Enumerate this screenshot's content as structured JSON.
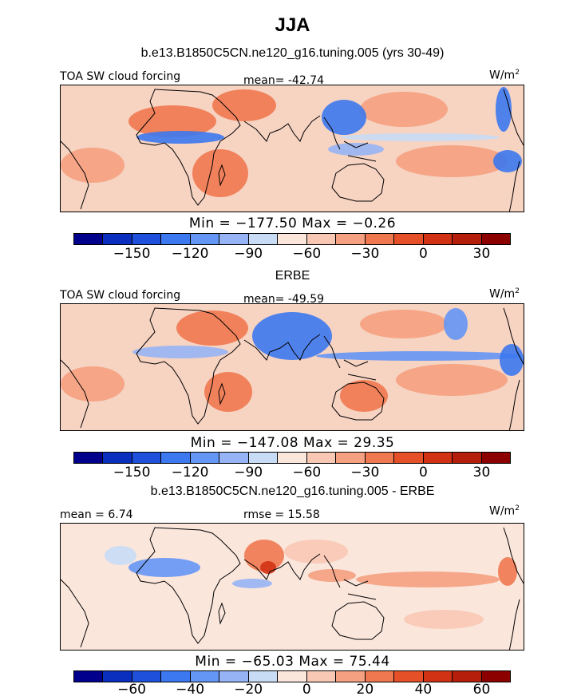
{
  "title": "JJA",
  "colors": [
    "#00008c",
    "#0a2fbe",
    "#1e50dc",
    "#3c78f0",
    "#6496f5",
    "#96b4f5",
    "#c8dcf5",
    "#fbe6dc",
    "#f8c8b4",
    "#f5a080",
    "#f07850",
    "#e65028",
    "#d23214",
    "#b41e0a",
    "#8c0000"
  ],
  "panels": [
    {
      "subtitle": "b.e13.B1850C5CN.ne120_g16.tuning.005 (yrs 30-49)",
      "left_label": "TOA SW cloud forcing",
      "center_label": "mean= -42.74",
      "units": "W/m",
      "units_sup": "2",
      "stats": "Min = −177.50 Max =  −0.26",
      "ticks": [
        "−150",
        "−120",
        "−90",
        "−60",
        "−30",
        "0",
        "30"
      ]
    },
    {
      "subtitle": "ERBE",
      "left_label": "TOA SW cloud forcing",
      "center_label": "mean= -49.59",
      "units": "W/m",
      "units_sup": "2",
      "stats": "Min = −147.08 Max =  29.35",
      "ticks": [
        "−150",
        "−120",
        "−90",
        "−60",
        "−30",
        "0",
        "30"
      ]
    },
    {
      "subtitle": "b.e13.B1850C5CN.ne120_g16.tuning.005 - ERBE",
      "left_label": "mean =   6.74",
      "center_label": "rmse =  15.58",
      "units": "W/m",
      "units_sup": "2",
      "stats": "Min = −65.03 Max =  75.44",
      "ticks": [
        "−60",
        "−40",
        "−20",
        "0",
        "20",
        "40",
        "60"
      ]
    }
  ],
  "chart_data": [
    {
      "type": "heatmap",
      "title": "b.e13.B1850C5CN.ne120_g16.tuning.005 (yrs 30-49)",
      "variable": "TOA SW cloud forcing",
      "units": "W/m2",
      "mean": -42.74,
      "min": -177.5,
      "max": -0.26,
      "colorbar_levels": [
        -165,
        -150,
        -135,
        -120,
        -105,
        -90,
        -75,
        -60,
        -45,
        -30,
        -15,
        0,
        15,
        30
      ],
      "colorbar_tick_labels": [
        -150,
        -120,
        -90,
        -60,
        -30,
        0,
        30
      ]
    },
    {
      "type": "heatmap",
      "title": "ERBE",
      "variable": "TOA SW cloud forcing",
      "units": "W/m2",
      "mean": -49.59,
      "min": -147.08,
      "max": 29.35,
      "colorbar_levels": [
        -165,
        -150,
        -135,
        -120,
        -105,
        -90,
        -75,
        -60,
        -45,
        -30,
        -15,
        0,
        15,
        30
      ],
      "colorbar_tick_labels": [
        -150,
        -120,
        -90,
        -60,
        -30,
        0,
        30
      ]
    },
    {
      "type": "heatmap",
      "title": "b.e13.B1850C5CN.ne120_g16.tuning.005 - ERBE",
      "units": "W/m2",
      "mean": 6.74,
      "rmse": 15.58,
      "min": -65.03,
      "max": 75.44,
      "colorbar_levels": [
        -70,
        -60,
        -50,
        -40,
        -30,
        -20,
        -10,
        0,
        10,
        20,
        30,
        40,
        50,
        60
      ],
      "colorbar_tick_labels": [
        -60,
        -40,
        -20,
        0,
        20,
        40,
        60
      ]
    }
  ]
}
